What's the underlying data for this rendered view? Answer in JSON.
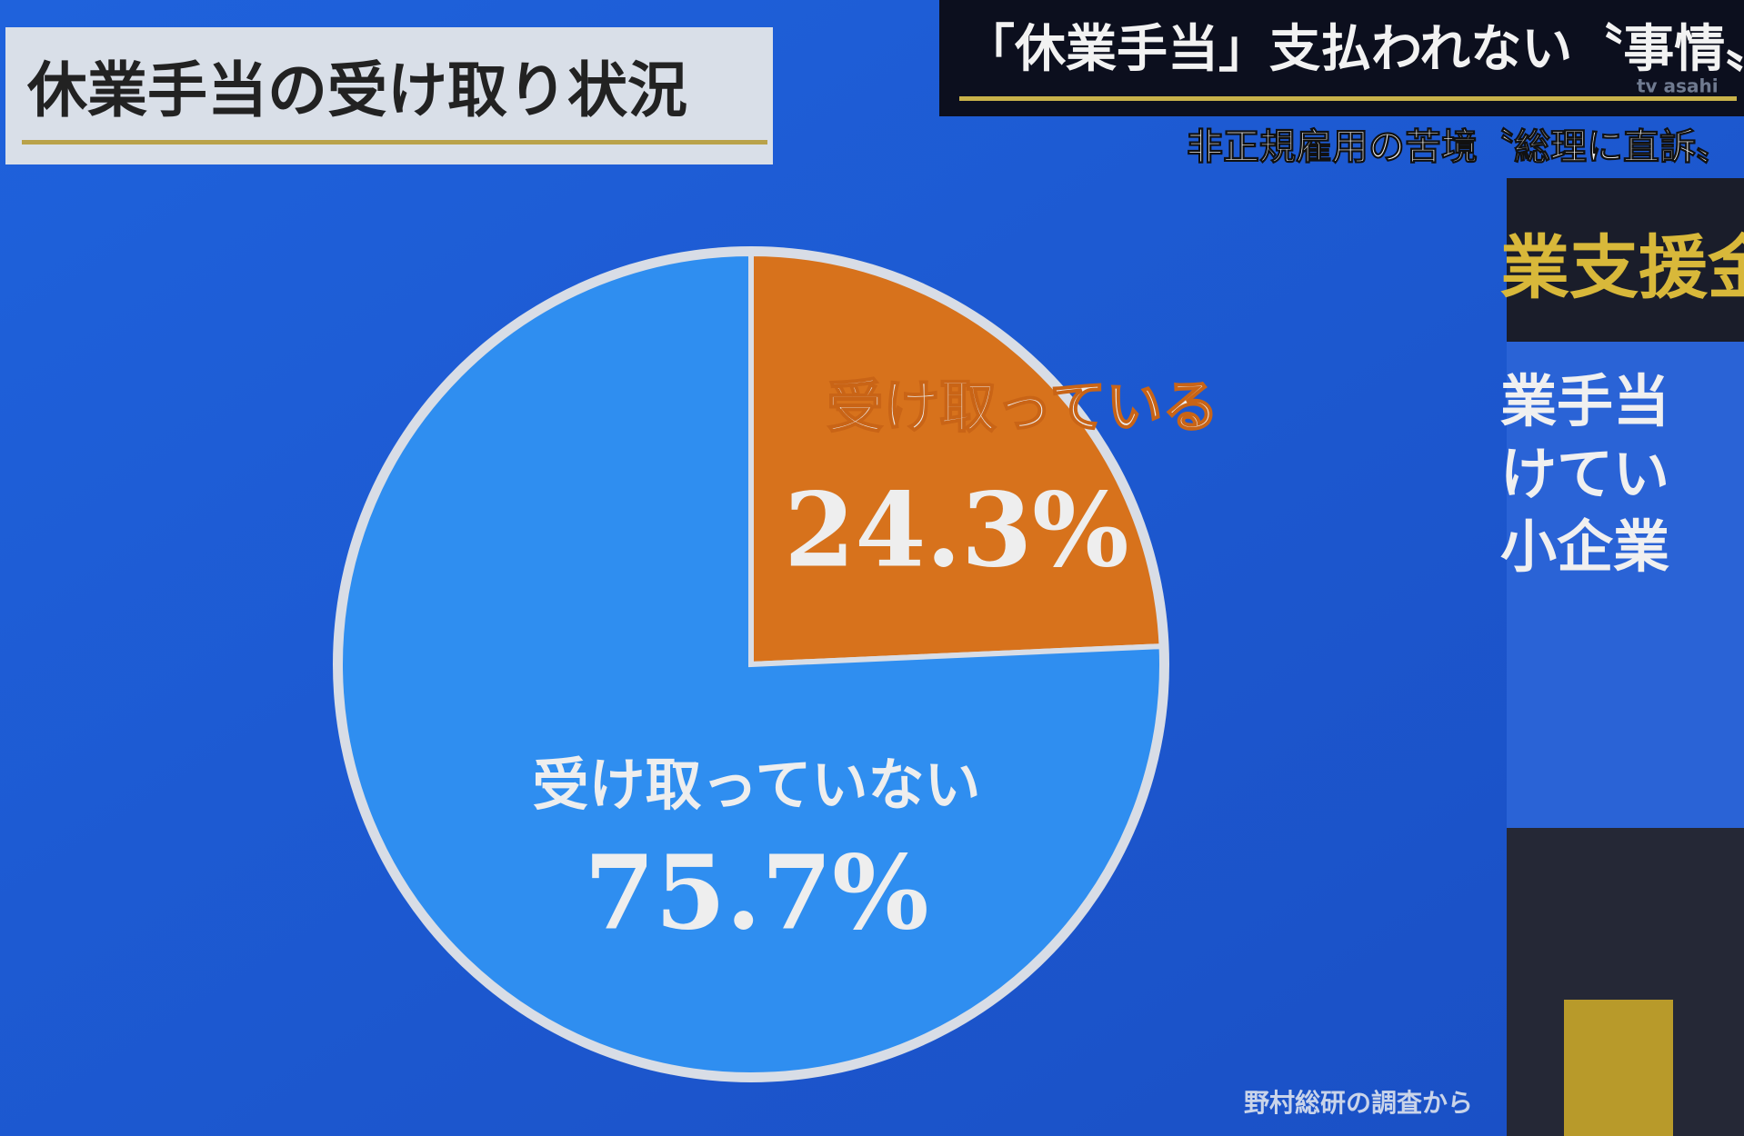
{
  "chart_data": {
    "type": "pie",
    "title": "休業手当の受け取り状況",
    "categories": [
      "受け取っている",
      "受け取っていない"
    ],
    "values": [
      24.3,
      75.7
    ],
    "value_labels": [
      "24.3%",
      "75.7%"
    ],
    "colors": [
      "#d7721c",
      "#2f8ef0"
    ],
    "source": "野村総研の調査から"
  },
  "overlay": {
    "headline": "「休業手当」支払われない〝事情〟",
    "logo": "tv asahi",
    "subheadline": "非正規雇用の苦境〝総理に直訴〟",
    "side_title": "業支援金",
    "side_lines": [
      "業手当",
      "けてい",
      "小企業"
    ]
  }
}
